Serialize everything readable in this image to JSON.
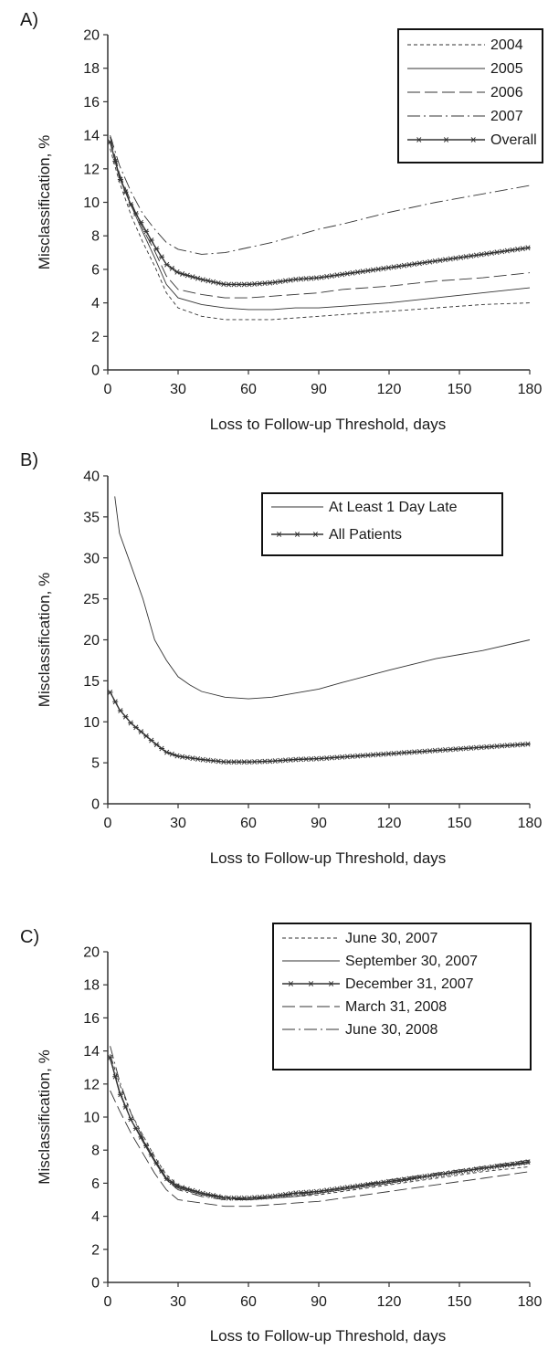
{
  "figure": {
    "panel_labels": [
      "A)",
      "B)",
      "C)"
    ]
  },
  "styles": {
    "ink": "#333333",
    "background": "#ffffff"
  },
  "chart_data": [
    {
      "panel": "A)",
      "type": "line",
      "xlabel": "Loss to Follow-up Threshold, days",
      "ylabel": "Misclassification, %",
      "xlim": [
        0,
        180
      ],
      "ylim": [
        0,
        20
      ],
      "xticks": [
        0,
        30,
        60,
        90,
        120,
        150,
        180
      ],
      "yticks": [
        0,
        2,
        4,
        6,
        8,
        10,
        12,
        14,
        16,
        18,
        20
      ],
      "grid": false,
      "legend": "top-right",
      "series": [
        {
          "name": "2004",
          "style": "dashed",
          "x": [
            1,
            5,
            10,
            15,
            20,
            25,
            30,
            40,
            50,
            60,
            70,
            80,
            90,
            100,
            120,
            140,
            160,
            180
          ],
          "y": [
            13.2,
            11.2,
            9.2,
            7.6,
            6.2,
            4.6,
            3.7,
            3.2,
            3.0,
            3.0,
            3.0,
            3.1,
            3.2,
            3.3,
            3.5,
            3.7,
            3.9,
            4.0
          ]
        },
        {
          "name": "2005",
          "style": "solid",
          "x": [
            1,
            5,
            10,
            15,
            20,
            25,
            30,
            40,
            50,
            60,
            70,
            80,
            90,
            100,
            120,
            140,
            160,
            180
          ],
          "y": [
            13.6,
            11.6,
            9.8,
            8.2,
            6.7,
            5.1,
            4.3,
            3.9,
            3.7,
            3.6,
            3.6,
            3.7,
            3.7,
            3.8,
            4.0,
            4.3,
            4.6,
            4.9
          ]
        },
        {
          "name": "2006",
          "style": "longdash",
          "x": [
            1,
            5,
            10,
            15,
            20,
            25,
            30,
            40,
            50,
            60,
            70,
            80,
            90,
            100,
            120,
            140,
            160,
            180
          ],
          "y": [
            13.9,
            11.7,
            10.0,
            8.4,
            7.1,
            5.6,
            4.8,
            4.5,
            4.3,
            4.3,
            4.4,
            4.5,
            4.6,
            4.8,
            5.0,
            5.3,
            5.5,
            5.8
          ]
        },
        {
          "name": "2007",
          "style": "dashdot",
          "x": [
            1,
            5,
            10,
            15,
            20,
            25,
            30,
            40,
            50,
            60,
            70,
            80,
            90,
            100,
            120,
            140,
            160,
            180
          ],
          "y": [
            14.0,
            12.2,
            10.6,
            9.3,
            8.4,
            7.6,
            7.2,
            6.9,
            7.0,
            7.3,
            7.6,
            8.0,
            8.4,
            8.7,
            9.4,
            10.0,
            10.5,
            11.0
          ]
        },
        {
          "name": "Overall",
          "style": "star",
          "x": [
            1,
            5,
            10,
            15,
            20,
            25,
            30,
            40,
            50,
            60,
            70,
            80,
            90,
            100,
            120,
            140,
            160,
            180
          ],
          "y": [
            13.6,
            11.5,
            9.8,
            8.6,
            7.4,
            6.3,
            5.8,
            5.4,
            5.1,
            5.1,
            5.2,
            5.4,
            5.5,
            5.7,
            6.1,
            6.5,
            6.9,
            7.3
          ]
        }
      ]
    },
    {
      "panel": "B)",
      "type": "line",
      "xlabel": "Loss to Follow-up Threshold, days",
      "ylabel": "Misclassification, %",
      "xlim": [
        0,
        180
      ],
      "ylim": [
        0,
        40
      ],
      "xticks": [
        0,
        30,
        60,
        90,
        120,
        150,
        180
      ],
      "yticks": [
        0,
        5,
        10,
        15,
        20,
        25,
        30,
        35,
        40
      ],
      "grid": false,
      "legend": "top-right",
      "series": [
        {
          "name": "At Least 1 Day Late",
          "style": "solid",
          "x": [
            3,
            5,
            10,
            15,
            20,
            25,
            30,
            35,
            40,
            50,
            60,
            70,
            80,
            90,
            100,
            120,
            140,
            160,
            180
          ],
          "y": [
            37.5,
            33.0,
            29.0,
            25.0,
            20.0,
            17.5,
            15.5,
            14.5,
            13.7,
            13.0,
            12.8,
            13.0,
            13.5,
            14.0,
            14.8,
            16.3,
            17.7,
            18.7,
            20.0
          ]
        },
        {
          "name": "All Patients",
          "style": "star",
          "x": [
            1,
            5,
            10,
            15,
            20,
            25,
            30,
            40,
            50,
            60,
            70,
            80,
            90,
            100,
            120,
            140,
            160,
            180
          ],
          "y": [
            13.6,
            11.5,
            9.8,
            8.6,
            7.4,
            6.3,
            5.8,
            5.4,
            5.1,
            5.1,
            5.2,
            5.4,
            5.5,
            5.7,
            6.1,
            6.5,
            6.9,
            7.3
          ]
        }
      ]
    },
    {
      "panel": "C)",
      "type": "line",
      "xlabel": "Loss to Follow-up Threshold, days",
      "ylabel": "Misclassification, %",
      "xlim": [
        0,
        180
      ],
      "ylim": [
        0,
        20
      ],
      "xticks": [
        0,
        30,
        60,
        90,
        120,
        150,
        180
      ],
      "yticks": [
        0,
        2,
        4,
        6,
        8,
        10,
        12,
        14,
        16,
        18,
        20
      ],
      "grid": false,
      "legend": "top-right",
      "series": [
        {
          "name": "June 30, 2007",
          "style": "dashed",
          "x": [
            1,
            5,
            10,
            15,
            20,
            25,
            30,
            40,
            50,
            60,
            70,
            80,
            90,
            100,
            120,
            140,
            160,
            180
          ],
          "y": [
            13.8,
            12.0,
            10.2,
            8.9,
            7.6,
            6.5,
            5.9,
            5.4,
            5.2,
            5.0,
            5.1,
            5.2,
            5.3,
            5.5,
            5.9,
            6.3,
            6.7,
            7.0
          ]
        },
        {
          "name": "September 30, 2007",
          "style": "solid",
          "x": [
            1,
            5,
            10,
            15,
            20,
            25,
            30,
            40,
            50,
            60,
            70,
            80,
            90,
            100,
            120,
            140,
            160,
            180
          ],
          "y": [
            13.5,
            11.6,
            9.8,
            8.5,
            7.3,
            6.2,
            5.7,
            5.3,
            5.1,
            5.0,
            5.1,
            5.2,
            5.4,
            5.6,
            6.0,
            6.5,
            6.9,
            7.2
          ]
        },
        {
          "name": "December 31, 2007",
          "style": "star",
          "x": [
            1,
            5,
            10,
            15,
            20,
            25,
            30,
            40,
            50,
            60,
            70,
            80,
            90,
            100,
            120,
            140,
            160,
            180
          ],
          "y": [
            13.6,
            11.5,
            9.8,
            8.6,
            7.4,
            6.3,
            5.8,
            5.4,
            5.1,
            5.1,
            5.2,
            5.4,
            5.5,
            5.7,
            6.1,
            6.5,
            6.9,
            7.3
          ]
        },
        {
          "name": "March 31, 2008",
          "style": "longdash",
          "x": [
            1,
            5,
            10,
            15,
            20,
            25,
            30,
            40,
            50,
            60,
            70,
            80,
            90,
            100,
            120,
            140,
            160,
            180
          ],
          "y": [
            11.6,
            10.4,
            9.0,
            7.8,
            6.6,
            5.6,
            5.0,
            4.8,
            4.6,
            4.6,
            4.7,
            4.8,
            4.9,
            5.1,
            5.5,
            5.9,
            6.3,
            6.7
          ]
        },
        {
          "name": "June 30, 2008",
          "style": "dashdot",
          "x": [
            1,
            5,
            10,
            15,
            20,
            25,
            30,
            40,
            50,
            60,
            70,
            80,
            90,
            100,
            120,
            140,
            160,
            180
          ],
          "y": [
            14.3,
            12.2,
            10.2,
            8.7,
            7.4,
            6.2,
            5.6,
            5.2,
            5.0,
            5.0,
            5.2,
            5.3,
            5.5,
            5.7,
            6.2,
            6.6,
            7.0,
            7.4
          ]
        }
      ]
    }
  ]
}
